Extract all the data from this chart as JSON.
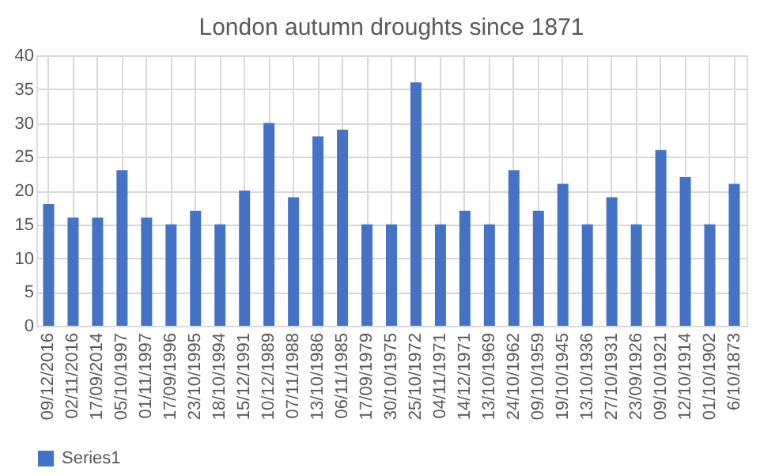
{
  "chart_data": {
    "type": "bar",
    "title": "London autumn droughts since 1871",
    "categories": [
      "09/12/2016",
      "02/11/2016",
      "17/09/2014",
      "05/10/1997",
      "01/11/1997",
      "17/09/1996",
      "23/10/1995",
      "18/10/1994",
      "15/12/1991",
      "10/12/1989",
      "07/11/1988",
      "13/10/1986",
      "06/11/1985",
      "17/09/1979",
      "30/10/1975",
      "25/10/1972",
      "04/11/1971",
      "14/12/1971",
      "13/10/1969",
      "24/10/1962",
      "09/10/1959",
      "19/10/1945",
      "13/10/1936",
      "27/10/1931",
      "23/09/1926",
      "09/10/1921",
      "12/10/1914",
      "01/10/1902",
      "6/10/1873"
    ],
    "series": [
      {
        "name": "Series1",
        "color": "#4472c4",
        "values": [
          18,
          16,
          16,
          23,
          16,
          15,
          17,
          15,
          20,
          30,
          19,
          28,
          29,
          15,
          15,
          36,
          15,
          17,
          15,
          23,
          17,
          21,
          15,
          19,
          15,
          26,
          22,
          15,
          21
        ]
      }
    ],
    "ylim": [
      0,
      40
    ],
    "yticks": [
      0,
      5,
      10,
      15,
      20,
      25,
      30,
      35,
      40
    ],
    "grid": true,
    "legend": "bottom"
  }
}
